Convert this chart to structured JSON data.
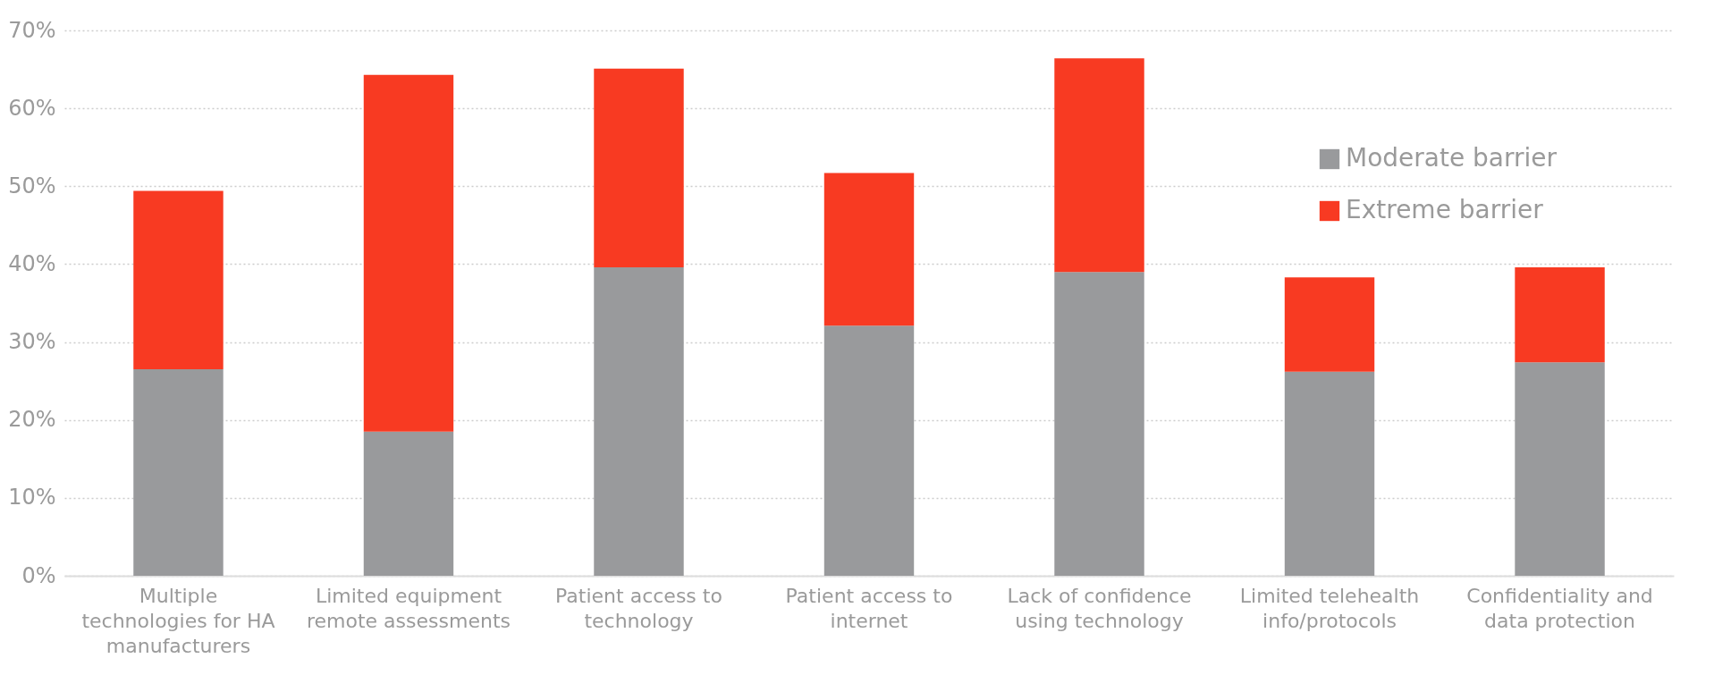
{
  "chart_data": {
    "type": "bar",
    "stacked": true,
    "categories": [
      "Multiple technologies for HA manufacturers",
      "Limited equipment remote assessments",
      "Patient access to technology",
      "Patient access to internet",
      "Lack of confidence using technology",
      "Limited telehealth info/protocols",
      "Confidentiality and data protection"
    ],
    "series": [
      {
        "name": "Moderate barrier",
        "color": "#999a9c",
        "values": [
          26.5,
          18.5,
          39.6,
          32.1,
          39.0,
          26.2,
          27.4
        ]
      },
      {
        "name": "Extreme barrier",
        "color": "#f83a22",
        "values": [
          22.9,
          45.8,
          25.5,
          19.6,
          27.4,
          12.1,
          12.2
        ]
      }
    ],
    "ylim": [
      0,
      70
    ],
    "yticks": [
      {
        "value": 0,
        "label": "0%"
      },
      {
        "value": 10,
        "label": "10%"
      },
      {
        "value": 20,
        "label": "20%"
      },
      {
        "value": 30,
        "label": "30%"
      },
      {
        "value": 40,
        "label": "40%"
      },
      {
        "value": 50,
        "label": "50%"
      },
      {
        "value": 60,
        "label": "60%"
      },
      {
        "value": 70,
        "label": "70%"
      }
    ],
    "grid": "y",
    "legend": "top right"
  }
}
